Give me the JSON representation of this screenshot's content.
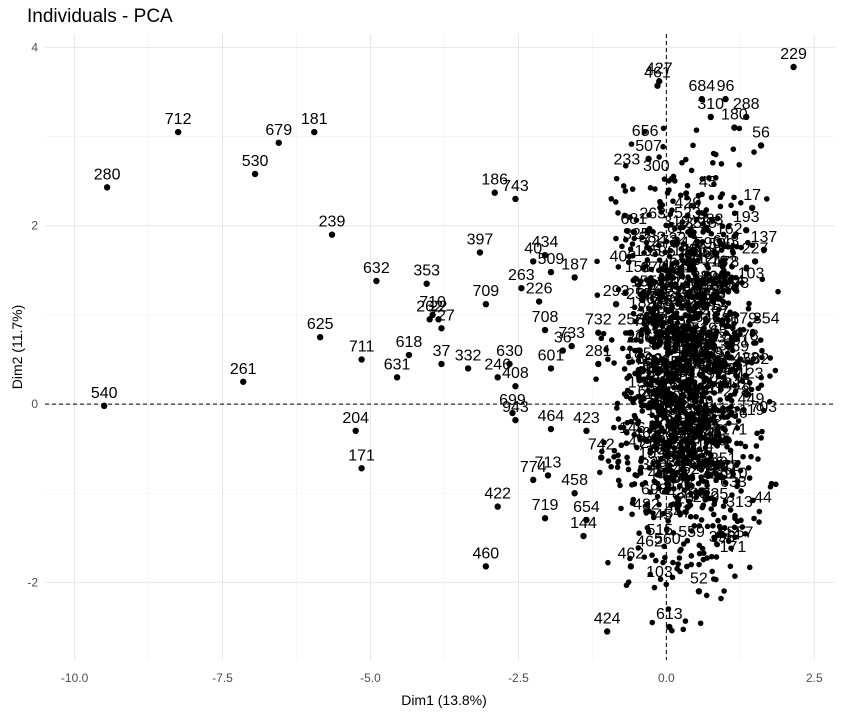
{
  "chart_data": {
    "type": "scatter",
    "title": "Individuals - PCA",
    "xlabel": "Dim1 (13.8%)",
    "ylabel": "Dim2 (11.7%)",
    "xlim": [
      -10.5,
      2.85
    ],
    "ylim": [
      -2.87,
      4.15
    ],
    "x_ticks": [
      -10.0,
      -7.5,
      -5.0,
      -2.5,
      0.0,
      2.5
    ],
    "x_tick_labels": [
      "-10.0",
      "-7.5",
      "-5.0",
      "-2.5",
      "0.0",
      "2.5"
    ],
    "y_ticks": [
      -2,
      0,
      2,
      4
    ],
    "y_tick_labels": [
      "-2",
      "0",
      "2",
      "4"
    ],
    "grid": true,
    "reference_lines": {
      "x": 0,
      "y": 0,
      "style": "dashed"
    },
    "labeled_points": [
      {
        "label": "229",
        "x": 2.15,
        "y": 3.78
      },
      {
        "label": "427",
        "x": -0.12,
        "y": 3.62
      },
      {
        "label": "461",
        "x": -0.15,
        "y": 3.57
      },
      {
        "label": "684",
        "x": 0.6,
        "y": 3.42
      },
      {
        "label": "96",
        "x": 1.0,
        "y": 3.42
      },
      {
        "label": "288",
        "x": 1.35,
        "y": 3.22
      },
      {
        "label": "310",
        "x": 0.75,
        "y": 3.22
      },
      {
        "label": "180",
        "x": 1.15,
        "y": 3.1
      },
      {
        "label": "56",
        "x": 1.6,
        "y": 2.9
      },
      {
        "label": "507",
        "x": -0.3,
        "y": 2.75
      },
      {
        "label": "712",
        "x": -8.25,
        "y": 3.05
      },
      {
        "label": "181",
        "x": -5.95,
        "y": 3.05
      },
      {
        "label": "679",
        "x": -6.55,
        "y": 2.93
      },
      {
        "label": "530",
        "x": -6.95,
        "y": 2.58
      },
      {
        "label": "280",
        "x": -9.45,
        "y": 2.43
      },
      {
        "label": "186",
        "x": -2.9,
        "y": 2.37
      },
      {
        "label": "743",
        "x": -2.55,
        "y": 2.3
      },
      {
        "label": "17",
        "x": 1.45,
        "y": 2.2
      },
      {
        "label": "193",
        "x": 1.35,
        "y": 1.95
      },
      {
        "label": "239",
        "x": -5.65,
        "y": 1.9
      },
      {
        "label": "681",
        "x": -0.55,
        "y": 1.93
      },
      {
        "label": "137",
        "x": 1.65,
        "y": 1.73
      },
      {
        "label": "397",
        "x": -3.15,
        "y": 1.7
      },
      {
        "label": "434",
        "x": -2.05,
        "y": 1.67
      },
      {
        "label": "40",
        "x": -2.25,
        "y": 1.6
      },
      {
        "label": "227",
        "x": 1.5,
        "y": 1.6
      },
      {
        "label": "509",
        "x": -1.95,
        "y": 1.48
      },
      {
        "label": "187",
        "x": -1.55,
        "y": 1.42
      },
      {
        "label": "632",
        "x": -4.9,
        "y": 1.38
      },
      {
        "label": "353",
        "x": -4.05,
        "y": 1.35
      },
      {
        "label": "263",
        "x": -2.45,
        "y": 1.3
      },
      {
        "label": "226",
        "x": -2.15,
        "y": 1.15
      },
      {
        "label": "709",
        "x": -3.05,
        "y": 1.12
      },
      {
        "label": "293",
        "x": -0.85,
        "y": 1.12
      },
      {
        "label": "710",
        "x": -3.95,
        "y": 1.0
      },
      {
        "label": "262",
        "x": -4.0,
        "y": 0.95
      },
      {
        "label": "22",
        "x": -3.85,
        "y": 0.95
      },
      {
        "label": "727",
        "x": -3.8,
        "y": 0.85
      },
      {
        "label": "625",
        "x": -5.85,
        "y": 0.75
      },
      {
        "label": "708",
        "x": -2.05,
        "y": 0.83
      },
      {
        "label": "732",
        "x": -1.15,
        "y": 0.8
      },
      {
        "label": "256",
        "x": -0.6,
        "y": 0.8
      },
      {
        "label": "733",
        "x": -1.6,
        "y": 0.65
      },
      {
        "label": "618",
        "x": -4.35,
        "y": 0.55
      },
      {
        "label": "711",
        "x": -5.15,
        "y": 0.5
      },
      {
        "label": "36",
        "x": -1.75,
        "y": 0.6
      },
      {
        "label": "206",
        "x": -0.45,
        "y": 0.6
      },
      {
        "label": "631",
        "x": -4.55,
        "y": 0.3
      },
      {
        "label": "37",
        "x": -3.8,
        "y": 0.45
      },
      {
        "label": "332",
        "x": -3.35,
        "y": 0.4
      },
      {
        "label": "630",
        "x": -2.65,
        "y": 0.45
      },
      {
        "label": "601",
        "x": -1.95,
        "y": 0.4
      },
      {
        "label": "281",
        "x": -1.15,
        "y": 0.45
      },
      {
        "label": "246",
        "x": -2.85,
        "y": 0.3
      },
      {
        "label": "408",
        "x": -2.55,
        "y": 0.2
      },
      {
        "label": "59",
        "x": 1.25,
        "y": 0.5
      },
      {
        "label": "261",
        "x": -7.15,
        "y": 0.25
      },
      {
        "label": "540",
        "x": -9.5,
        "y": -0.02
      },
      {
        "label": "699",
        "x": -2.6,
        "y": -0.1
      },
      {
        "label": "943",
        "x": -2.55,
        "y": -0.18
      },
      {
        "label": "464",
        "x": -1.95,
        "y": -0.28
      },
      {
        "label": "423",
        "x": -1.35,
        "y": -0.3
      },
      {
        "label": "204",
        "x": -5.25,
        "y": -0.3
      },
      {
        "label": "742",
        "x": -1.1,
        "y": -0.6
      },
      {
        "label": "171",
        "x": -5.15,
        "y": -0.72
      },
      {
        "label": "713",
        "x": -2.0,
        "y": -0.8
      },
      {
        "label": "774",
        "x": -2.25,
        "y": -0.85
      },
      {
        "label": "458",
        "x": -1.55,
        "y": -1.0
      },
      {
        "label": "422",
        "x": -2.85,
        "y": -1.15
      },
      {
        "label": "719",
        "x": -2.05,
        "y": -1.28
      },
      {
        "label": "654",
        "x": -1.35,
        "y": -1.3
      },
      {
        "label": "144",
        "x": -1.4,
        "y": -1.48
      },
      {
        "label": "460",
        "x": -3.05,
        "y": -1.82
      },
      {
        "label": "462",
        "x": -0.6,
        "y": -1.82
      },
      {
        "label": "52",
        "x": 0.55,
        "y": -2.1
      },
      {
        "label": "424",
        "x": -1.0,
        "y": -2.55
      },
      {
        "label": "613",
        "x": 0.05,
        "y": -2.5
      }
    ]
  }
}
